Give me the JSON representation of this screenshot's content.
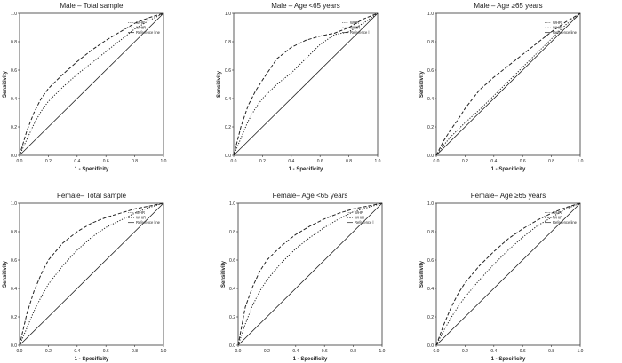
{
  "chart_data": [
    {
      "type": "line",
      "title": "Male – Total sample",
      "xlabel": "1 - Specificity",
      "ylabel": "Sensitivity",
      "xlim": [
        0,
        1
      ],
      "ylim": [
        0,
        1
      ],
      "x_ticks": [
        "0.0",
        "0.2",
        "0.4",
        "0.6",
        "0.8",
        "1.0"
      ],
      "y_ticks": [
        "0.0",
        "0.2",
        "0.4",
        "0.6",
        "0.8",
        "1.0"
      ],
      "legend": "top-right",
      "series": [
        {
          "name": "WHR",
          "style": "dotted",
          "points": [
            [
              0,
              0
            ],
            [
              0.05,
              0.11
            ],
            [
              0.1,
              0.22
            ],
            [
              0.15,
              0.31
            ],
            [
              0.2,
              0.38
            ],
            [
              0.3,
              0.48
            ],
            [
              0.4,
              0.57
            ],
            [
              0.5,
              0.65
            ],
            [
              0.6,
              0.73
            ],
            [
              0.7,
              0.81
            ],
            [
              0.8,
              0.89
            ],
            [
              0.9,
              0.95
            ],
            [
              1,
              1
            ]
          ]
        },
        {
          "name": "WHtR",
          "style": "dashed",
          "points": [
            [
              0,
              0
            ],
            [
              0.05,
              0.17
            ],
            [
              0.1,
              0.3
            ],
            [
              0.15,
              0.4
            ],
            [
              0.2,
              0.47
            ],
            [
              0.3,
              0.57
            ],
            [
              0.4,
              0.66
            ],
            [
              0.5,
              0.74
            ],
            [
              0.6,
              0.81
            ],
            [
              0.7,
              0.87
            ],
            [
              0.8,
              0.93
            ],
            [
              0.9,
              0.97
            ],
            [
              1,
              1
            ]
          ]
        },
        {
          "name": "Reference line",
          "style": "solid",
          "points": [
            [
              0,
              0
            ],
            [
              1,
              1
            ]
          ]
        }
      ]
    },
    {
      "type": "line",
      "title": "Male – Age <65 years",
      "xlabel": "1 - Specificity",
      "ylabel": "Sensitivity",
      "xlim": [
        0,
        1
      ],
      "ylim": [
        0,
        1
      ],
      "x_ticks": [
        "0.0",
        "0.2",
        "0.4",
        "0.6",
        "0.8",
        "1.0"
      ],
      "y_ticks": [
        "0.0",
        "0.2",
        "0.4",
        "0.6",
        "0.8",
        "1.0"
      ],
      "legend": "top-right",
      "series": [
        {
          "name": "WHR",
          "style": "dotted",
          "points": [
            [
              0,
              0
            ],
            [
              0.05,
              0.12
            ],
            [
              0.1,
              0.24
            ],
            [
              0.15,
              0.33
            ],
            [
              0.2,
              0.4
            ],
            [
              0.3,
              0.5
            ],
            [
              0.4,
              0.58
            ],
            [
              0.5,
              0.68
            ],
            [
              0.6,
              0.78
            ],
            [
              0.7,
              0.85
            ],
            [
              0.8,
              0.87
            ],
            [
              0.9,
              0.93
            ],
            [
              1,
              1
            ]
          ]
        },
        {
          "name": "WHtR",
          "style": "dashed",
          "points": [
            [
              0,
              0
            ],
            [
              0.05,
              0.2
            ],
            [
              0.1,
              0.35
            ],
            [
              0.15,
              0.45
            ],
            [
              0.2,
              0.53
            ],
            [
              0.3,
              0.68
            ],
            [
              0.4,
              0.76
            ],
            [
              0.5,
              0.81
            ],
            [
              0.6,
              0.84
            ],
            [
              0.7,
              0.86
            ],
            [
              0.8,
              0.9
            ],
            [
              0.9,
              0.96
            ],
            [
              1,
              1
            ]
          ]
        },
        {
          "name": "Reference l",
          "style": "solid",
          "points": [
            [
              0,
              0
            ],
            [
              1,
              1
            ]
          ]
        }
      ]
    },
    {
      "type": "line",
      "title": "Male – Age ≥65 years",
      "xlabel": "1 - Specificity",
      "ylabel": "Sensitivity",
      "xlim": [
        0,
        1
      ],
      "ylim": [
        0,
        1
      ],
      "x_ticks": [
        "0.0",
        "0.2",
        "0.4",
        "0.6",
        "0.8",
        "1.0"
      ],
      "y_ticks": [
        "0.0",
        "0.2",
        "0.4",
        "0.6",
        "0.8",
        "1.0"
      ],
      "legend": "top-right",
      "series": [
        {
          "name": "WHR",
          "style": "dotted",
          "points": [
            [
              0,
              0
            ],
            [
              0.05,
              0.07
            ],
            [
              0.1,
              0.13
            ],
            [
              0.15,
              0.18
            ],
            [
              0.2,
              0.23
            ],
            [
              0.3,
              0.32
            ],
            [
              0.4,
              0.42
            ],
            [
              0.5,
              0.52
            ],
            [
              0.6,
              0.62
            ],
            [
              0.7,
              0.72
            ],
            [
              0.8,
              0.82
            ],
            [
              0.9,
              0.92
            ],
            [
              1,
              1
            ]
          ]
        },
        {
          "name": "WHtR",
          "style": "dashed",
          "points": [
            [
              0,
              0
            ],
            [
              0.05,
              0.1
            ],
            [
              0.1,
              0.18
            ],
            [
              0.15,
              0.25
            ],
            [
              0.2,
              0.33
            ],
            [
              0.3,
              0.46
            ],
            [
              0.4,
              0.55
            ],
            [
              0.5,
              0.63
            ],
            [
              0.6,
              0.71
            ],
            [
              0.7,
              0.79
            ],
            [
              0.8,
              0.87
            ],
            [
              0.9,
              0.94
            ],
            [
              1,
              1
            ]
          ]
        },
        {
          "name": "Reference line",
          "style": "solid",
          "points": [
            [
              0,
              0
            ],
            [
              1,
              1
            ]
          ]
        }
      ]
    },
    {
      "type": "line",
      "title": "Female– Total sample",
      "xlabel": "1 - Specificity",
      "ylabel": "Sensitivity",
      "xlim": [
        0,
        1
      ],
      "ylim": [
        0,
        1
      ],
      "x_ticks": [
        "0.0",
        "0.2",
        "0.4",
        "0.6",
        "0.8",
        "1.0"
      ],
      "y_ticks": [
        "0.0",
        "0.2",
        "0.4",
        "0.6",
        "0.8",
        "1.0"
      ],
      "legend": "top-right",
      "series": [
        {
          "name": "WHR",
          "style": "dotted",
          "points": [
            [
              0,
              0
            ],
            [
              0.05,
              0.12
            ],
            [
              0.1,
              0.24
            ],
            [
              0.15,
              0.34
            ],
            [
              0.2,
              0.43
            ],
            [
              0.3,
              0.56
            ],
            [
              0.4,
              0.67
            ],
            [
              0.5,
              0.76
            ],
            [
              0.6,
              0.83
            ],
            [
              0.7,
              0.88
            ],
            [
              0.8,
              0.93
            ],
            [
              0.9,
              0.97
            ],
            [
              1,
              1
            ]
          ]
        },
        {
          "name": "WHtR",
          "style": "dashed",
          "points": [
            [
              0,
              0
            ],
            [
              0.05,
              0.22
            ],
            [
              0.1,
              0.38
            ],
            [
              0.15,
              0.5
            ],
            [
              0.2,
              0.6
            ],
            [
              0.3,
              0.72
            ],
            [
              0.4,
              0.8
            ],
            [
              0.5,
              0.86
            ],
            [
              0.6,
              0.9
            ],
            [
              0.7,
              0.93
            ],
            [
              0.8,
              0.96
            ],
            [
              0.9,
              0.98
            ],
            [
              1,
              1
            ]
          ]
        },
        {
          "name": "Reference line",
          "style": "solid",
          "points": [
            [
              0,
              0
            ],
            [
              1,
              1
            ]
          ]
        }
      ]
    },
    {
      "type": "line",
      "title": "Female– Age <65 years",
      "xlabel": "1 - Specificity",
      "ylabel": "Sensitivity",
      "xlim": [
        0,
        1
      ],
      "ylim": [
        0,
        1
      ],
      "x_ticks": [
        "0.0",
        "0.2",
        "0.4",
        "0.6",
        "0.8",
        "1.0"
      ],
      "y_ticks": [
        "0.0",
        "0.2",
        "0.4",
        "0.6",
        "0.8",
        "1.0"
      ],
      "legend": "top-right",
      "series": [
        {
          "name": "WHR",
          "style": "dotted",
          "points": [
            [
              0,
              0
            ],
            [
              0.05,
              0.15
            ],
            [
              0.1,
              0.28
            ],
            [
              0.15,
              0.38
            ],
            [
              0.2,
              0.46
            ],
            [
              0.3,
              0.58
            ],
            [
              0.4,
              0.68
            ],
            [
              0.5,
              0.76
            ],
            [
              0.6,
              0.83
            ],
            [
              0.7,
              0.89
            ],
            [
              0.8,
              0.94
            ],
            [
              0.9,
              0.97
            ],
            [
              1,
              1
            ]
          ]
        },
        {
          "name": "WHtR",
          "style": "dashed",
          "points": [
            [
              0,
              0
            ],
            [
              0.05,
              0.27
            ],
            [
              0.1,
              0.41
            ],
            [
              0.15,
              0.52
            ],
            [
              0.2,
              0.6
            ],
            [
              0.3,
              0.7
            ],
            [
              0.4,
              0.78
            ],
            [
              0.5,
              0.84
            ],
            [
              0.6,
              0.89
            ],
            [
              0.7,
              0.93
            ],
            [
              0.8,
              0.96
            ],
            [
              0.9,
              0.98
            ],
            [
              1,
              1
            ]
          ]
        },
        {
          "name": "Reference l",
          "style": "solid",
          "points": [
            [
              0,
              0
            ],
            [
              1,
              1
            ]
          ]
        }
      ]
    },
    {
      "type": "line",
      "title": "Female– Age ≥65 years",
      "xlabel": "1 - Specificity",
      "ylabel": "Sensitivity",
      "xlim": [
        0,
        1
      ],
      "ylim": [
        0,
        1
      ],
      "x_ticks": [
        "0.0",
        "0.2",
        "0.4",
        "0.6",
        "0.8",
        "1.0"
      ],
      "y_ticks": [
        "0.0",
        "0.2",
        "0.4",
        "0.6",
        "0.8",
        "1.0"
      ],
      "legend": "top-right",
      "series": [
        {
          "name": "WHR",
          "style": "dotted",
          "points": [
            [
              0,
              0
            ],
            [
              0.05,
              0.1
            ],
            [
              0.1,
              0.19
            ],
            [
              0.15,
              0.27
            ],
            [
              0.2,
              0.34
            ],
            [
              0.3,
              0.46
            ],
            [
              0.4,
              0.57
            ],
            [
              0.5,
              0.67
            ],
            [
              0.6,
              0.76
            ],
            [
              0.7,
              0.84
            ],
            [
              0.8,
              0.9
            ],
            [
              0.9,
              0.96
            ],
            [
              1,
              1
            ]
          ]
        },
        {
          "name": "WHtR",
          "style": "dashed",
          "points": [
            [
              0,
              0
            ],
            [
              0.05,
              0.14
            ],
            [
              0.1,
              0.26
            ],
            [
              0.15,
              0.36
            ],
            [
              0.2,
              0.44
            ],
            [
              0.3,
              0.56
            ],
            [
              0.4,
              0.66
            ],
            [
              0.5,
              0.75
            ],
            [
              0.6,
              0.82
            ],
            [
              0.7,
              0.88
            ],
            [
              0.8,
              0.93
            ],
            [
              0.9,
              0.97
            ],
            [
              1,
              1
            ]
          ]
        },
        {
          "name": "Reference line",
          "style": "solid",
          "points": [
            [
              0,
              0
            ],
            [
              1,
              1
            ]
          ]
        }
      ]
    }
  ]
}
